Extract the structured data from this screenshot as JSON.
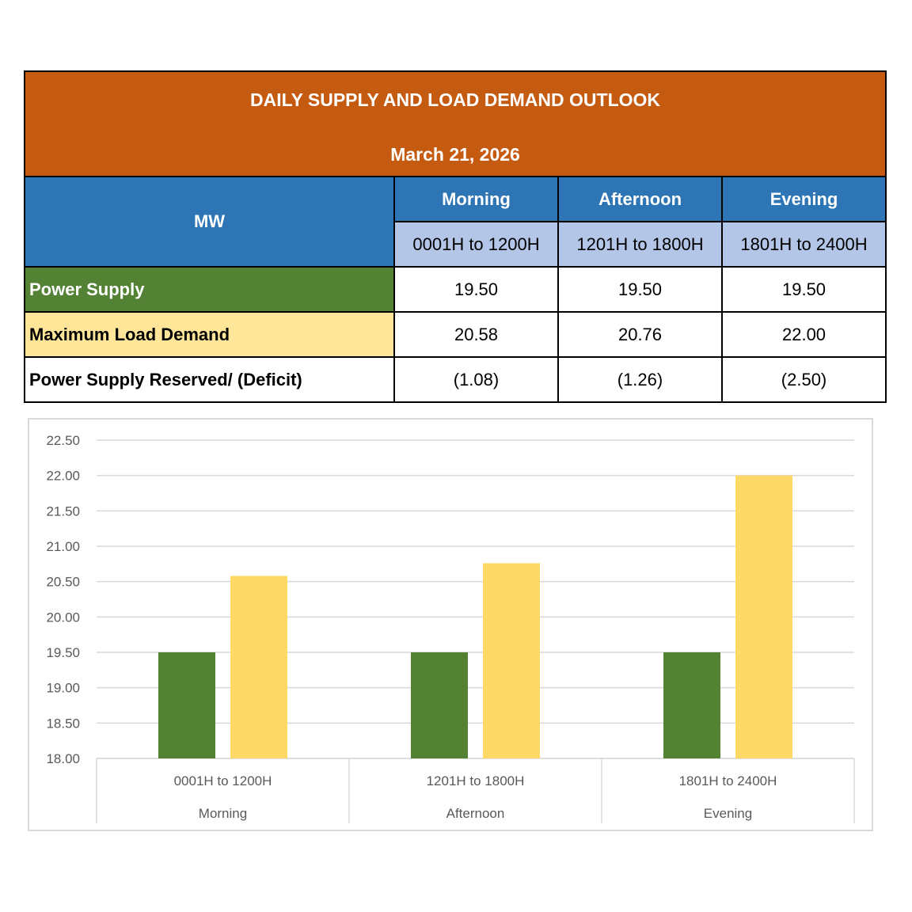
{
  "table": {
    "title": "DAILY SUPPLY AND LOAD DEMAND OUTLOOK",
    "date": "March 21, 2026",
    "unit_label": "MW",
    "periods": [
      {
        "name": "Morning",
        "range": "0001H to 1200H"
      },
      {
        "name": "Afternoon",
        "range": "1201H to 1800H"
      },
      {
        "name": "Evening",
        "range": "1801H to 2400H"
      }
    ],
    "rows": [
      {
        "label": "Power Supply",
        "values": [
          "19.50",
          "19.50",
          "19.50"
        ]
      },
      {
        "label": "Maximum Load Demand",
        "values": [
          "20.58",
          "20.76",
          "22.00"
        ]
      },
      {
        "label": "Power Supply Reserved/ (Deficit)",
        "values": [
          "(1.08)",
          "(1.26)",
          "(2.50)"
        ]
      }
    ],
    "colors": {
      "title_bg": "#c55a11",
      "header_bg": "#2e75b6",
      "subheader_bg": "#b4c6e7",
      "supply_bg": "#548235",
      "demand_bg": "#ffe699"
    }
  },
  "chart_data": {
    "type": "bar",
    "categories": [
      {
        "range": "0001H to 1200H",
        "period": "Morning"
      },
      {
        "range": "1201H to 1800H",
        "period": "Afternoon"
      },
      {
        "range": "1801H to 2400H",
        "period": "Evening"
      }
    ],
    "series": [
      {
        "values": [
          19.5,
          19.5,
          19.5
        ],
        "color": "#548235"
      },
      {
        "values": [
          20.58,
          20.76,
          22.0
        ],
        "color": "#ffd966"
      }
    ],
    "yticks": [
      "18.00",
      "18.50",
      "19.00",
      "19.50",
      "20.00",
      "20.50",
      "21.00",
      "21.50",
      "22.00",
      "22.50"
    ],
    "ylim": [
      18,
      22.5
    ],
    "grid": true,
    "title": "",
    "xlabel": "",
    "ylabel": ""
  }
}
